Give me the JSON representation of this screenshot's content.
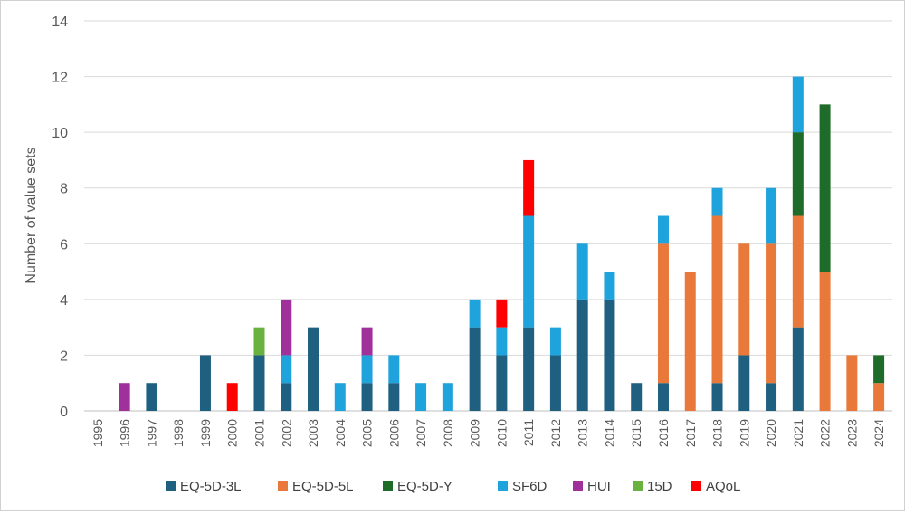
{
  "chart_data": {
    "type": "bar",
    "stacked": true,
    "title": "",
    "xlabel": "",
    "ylabel": "Number of value sets",
    "ylim": [
      0,
      14
    ],
    "yticks": [
      0,
      2,
      4,
      6,
      8,
      10,
      12,
      14
    ],
    "grid": true,
    "legend_position": "bottom",
    "categories": [
      "1995",
      "1996",
      "1997",
      "1998",
      "1999",
      "2000",
      "2001",
      "2002",
      "2003",
      "2004",
      "2005",
      "2006",
      "2007",
      "2008",
      "2009",
      "2010",
      "2011",
      "2012",
      "2013",
      "2014",
      "2015",
      "2016",
      "2017",
      "2018",
      "2019",
      "2020",
      "2021",
      "2022",
      "2023",
      "2024"
    ],
    "series": [
      {
        "name": "EQ-5D-3L",
        "color": "#1f5f7f",
        "values": [
          0,
          0,
          1,
          0,
          2,
          0,
          2,
          1,
          3,
          0,
          1,
          1,
          0,
          0,
          3,
          2,
          3,
          2,
          4,
          4,
          1,
          1,
          0,
          1,
          2,
          1,
          3,
          0,
          0,
          0
        ]
      },
      {
        "name": "EQ-5D-5L",
        "color": "#e8793a",
        "values": [
          0,
          0,
          0,
          0,
          0,
          0,
          0,
          0,
          0,
          0,
          0,
          0,
          0,
          0,
          0,
          0,
          0,
          0,
          0,
          0,
          0,
          5,
          5,
          6,
          4,
          5,
          4,
          5,
          2,
          1
        ]
      },
      {
        "name": "EQ-5D-Y",
        "color": "#1e6b2a",
        "values": [
          0,
          0,
          0,
          0,
          0,
          0,
          0,
          0,
          0,
          0,
          0,
          0,
          0,
          0,
          0,
          0,
          0,
          0,
          0,
          0,
          0,
          0,
          0,
          0,
          0,
          0,
          3,
          6,
          0,
          1
        ]
      },
      {
        "name": "SF6D",
        "color": "#1fa3dc",
        "values": [
          0,
          0,
          0,
          0,
          0,
          0,
          0,
          1,
          0,
          1,
          1,
          1,
          1,
          1,
          1,
          1,
          4,
          1,
          2,
          1,
          0,
          1,
          0,
          1,
          0,
          2,
          2,
          0,
          0,
          0
        ]
      },
      {
        "name": "HUI",
        "color": "#a0309a",
        "values": [
          0,
          1,
          0,
          0,
          0,
          0,
          0,
          2,
          0,
          0,
          1,
          0,
          0,
          0,
          0,
          0,
          0,
          0,
          0,
          0,
          0,
          0,
          0,
          0,
          0,
          0,
          0,
          0,
          0,
          0
        ]
      },
      {
        "name": "15D",
        "color": "#6ab23f",
        "values": [
          0,
          0,
          0,
          0,
          0,
          0,
          1,
          0,
          0,
          0,
          0,
          0,
          0,
          0,
          0,
          0,
          0,
          0,
          0,
          0,
          0,
          0,
          0,
          0,
          0,
          0,
          0,
          0,
          0,
          0
        ]
      },
      {
        "name": "AQoL",
        "color": "#ff0000",
        "values": [
          0,
          0,
          0,
          0,
          0,
          1,
          0,
          0,
          0,
          0,
          0,
          0,
          0,
          0,
          0,
          1,
          2,
          0,
          0,
          0,
          0,
          0,
          0,
          0,
          0,
          0,
          0,
          0,
          0,
          0
        ]
      }
    ]
  }
}
